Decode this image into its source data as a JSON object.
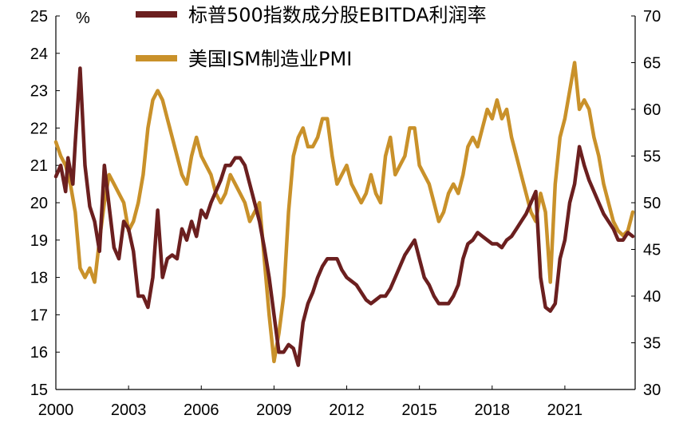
{
  "chart_data": {
    "type": "line",
    "y_unit_label": "%",
    "x_ticks": [
      "2000",
      "2003",
      "2006",
      "2009",
      "2012",
      "2015",
      "2018",
      "2021"
    ],
    "x_range": [
      2000,
      2023.9
    ],
    "left_axis": {
      "ticks": [
        "15",
        "16",
        "17",
        "18",
        "19",
        "20",
        "21",
        "22",
        "23",
        "24",
        "25"
      ],
      "range": [
        15,
        25
      ]
    },
    "right_axis": {
      "ticks": [
        "30",
        "35",
        "40",
        "45",
        "50",
        "55",
        "60",
        "65",
        "70"
      ],
      "range": [
        30,
        70
      ]
    },
    "legend_position": "top-center",
    "grid": false,
    "series": [
      {
        "name": "标普500指数成分股EBITDA利润率",
        "color": "#6b1f1f",
        "axis": "left",
        "points": [
          [
            2000.0,
            20.7
          ],
          [
            2000.2,
            21.0
          ],
          [
            2000.4,
            20.3
          ],
          [
            2000.5,
            21.2
          ],
          [
            2000.7,
            20.5
          ],
          [
            2000.8,
            21.6
          ],
          [
            2001.0,
            23.6
          ],
          [
            2001.2,
            21.0
          ],
          [
            2001.4,
            19.9
          ],
          [
            2001.6,
            19.5
          ],
          [
            2001.8,
            18.7
          ],
          [
            2002.0,
            21.0
          ],
          [
            2002.2,
            19.9
          ],
          [
            2002.4,
            18.8
          ],
          [
            2002.6,
            18.5
          ],
          [
            2002.8,
            19.5
          ],
          [
            2003.0,
            19.3
          ],
          [
            2003.2,
            18.7
          ],
          [
            2003.4,
            17.5
          ],
          [
            2003.6,
            17.5
          ],
          [
            2003.8,
            17.2
          ],
          [
            2004.0,
            18.0
          ],
          [
            2004.2,
            19.8
          ],
          [
            2004.4,
            18.0
          ],
          [
            2004.6,
            18.5
          ],
          [
            2004.8,
            18.6
          ],
          [
            2005.0,
            18.5
          ],
          [
            2005.2,
            19.3
          ],
          [
            2005.4,
            19.0
          ],
          [
            2005.6,
            19.5
          ],
          [
            2005.8,
            19.1
          ],
          [
            2006.0,
            19.8
          ],
          [
            2006.2,
            19.6
          ],
          [
            2006.4,
            20.0
          ],
          [
            2006.6,
            20.3
          ],
          [
            2006.8,
            20.6
          ],
          [
            2007.0,
            21.0
          ],
          [
            2007.2,
            21.0
          ],
          [
            2007.4,
            21.2
          ],
          [
            2007.6,
            21.2
          ],
          [
            2007.8,
            21.0
          ],
          [
            2008.0,
            20.5
          ],
          [
            2008.2,
            20.0
          ],
          [
            2008.4,
            19.5
          ],
          [
            2008.6,
            18.8
          ],
          [
            2008.8,
            18.0
          ],
          [
            2009.0,
            17.0
          ],
          [
            2009.2,
            16.0
          ],
          [
            2009.4,
            16.0
          ],
          [
            2009.6,
            16.2
          ],
          [
            2009.8,
            16.1
          ],
          [
            2010.0,
            15.65
          ],
          [
            2010.2,
            16.8
          ],
          [
            2010.4,
            17.3
          ],
          [
            2010.6,
            17.6
          ],
          [
            2010.8,
            18.0
          ],
          [
            2011.0,
            18.3
          ],
          [
            2011.2,
            18.5
          ],
          [
            2011.4,
            18.5
          ],
          [
            2011.6,
            18.5
          ],
          [
            2011.8,
            18.2
          ],
          [
            2012.0,
            18.0
          ],
          [
            2012.2,
            17.9
          ],
          [
            2012.4,
            17.8
          ],
          [
            2012.6,
            17.6
          ],
          [
            2012.8,
            17.4
          ],
          [
            2013.0,
            17.3
          ],
          [
            2013.2,
            17.4
          ],
          [
            2013.4,
            17.5
          ],
          [
            2013.6,
            17.5
          ],
          [
            2013.8,
            17.7
          ],
          [
            2014.0,
            18.0
          ],
          [
            2014.2,
            18.3
          ],
          [
            2014.4,
            18.6
          ],
          [
            2014.6,
            18.8
          ],
          [
            2014.8,
            19.0
          ],
          [
            2015.0,
            18.5
          ],
          [
            2015.2,
            18.0
          ],
          [
            2015.4,
            17.8
          ],
          [
            2015.6,
            17.5
          ],
          [
            2015.8,
            17.3
          ],
          [
            2016.0,
            17.3
          ],
          [
            2016.2,
            17.3
          ],
          [
            2016.4,
            17.5
          ],
          [
            2016.6,
            17.8
          ],
          [
            2016.8,
            18.5
          ],
          [
            2017.0,
            18.9
          ],
          [
            2017.2,
            19.0
          ],
          [
            2017.4,
            19.2
          ],
          [
            2017.6,
            19.1
          ],
          [
            2017.8,
            19.0
          ],
          [
            2018.0,
            18.9
          ],
          [
            2018.2,
            18.9
          ],
          [
            2018.4,
            18.8
          ],
          [
            2018.6,
            19.0
          ],
          [
            2018.8,
            19.1
          ],
          [
            2019.0,
            19.3
          ],
          [
            2019.2,
            19.5
          ],
          [
            2019.4,
            19.7
          ],
          [
            2019.6,
            20.0
          ],
          [
            2019.8,
            20.3
          ],
          [
            2020.0,
            18.0
          ],
          [
            2020.2,
            17.2
          ],
          [
            2020.4,
            17.1
          ],
          [
            2020.6,
            17.3
          ],
          [
            2020.8,
            18.5
          ],
          [
            2021.0,
            19.0
          ],
          [
            2021.2,
            20.0
          ],
          [
            2021.4,
            20.5
          ],
          [
            2021.6,
            21.5
          ],
          [
            2021.8,
            21.0
          ],
          [
            2022.0,
            20.6
          ],
          [
            2022.2,
            20.3
          ],
          [
            2022.4,
            20.0
          ],
          [
            2022.6,
            19.7
          ],
          [
            2022.8,
            19.5
          ],
          [
            2023.0,
            19.3
          ],
          [
            2023.2,
            19.0
          ],
          [
            2023.4,
            19.0
          ],
          [
            2023.6,
            19.2
          ],
          [
            2023.8,
            19.1
          ]
        ]
      },
      {
        "name": "美国ISM制造业PMI",
        "color": "#c9912a",
        "axis": "right",
        "points": [
          [
            2000.0,
            56.5
          ],
          [
            2000.2,
            55.0
          ],
          [
            2000.4,
            54.0
          ],
          [
            2000.6,
            52.0
          ],
          [
            2000.8,
            49.0
          ],
          [
            2001.0,
            43.0
          ],
          [
            2001.2,
            42.0
          ],
          [
            2001.4,
            43.0
          ],
          [
            2001.6,
            41.5
          ],
          [
            2001.8,
            46.0
          ],
          [
            2002.0,
            50.0
          ],
          [
            2002.2,
            53.0
          ],
          [
            2002.4,
            52.0
          ],
          [
            2002.6,
            51.0
          ],
          [
            2002.8,
            50.0
          ],
          [
            2003.0,
            47.0
          ],
          [
            2003.2,
            48.0
          ],
          [
            2003.4,
            50.0
          ],
          [
            2003.6,
            53.0
          ],
          [
            2003.8,
            58.0
          ],
          [
            2004.0,
            61.0
          ],
          [
            2004.2,
            62.0
          ],
          [
            2004.4,
            61.0
          ],
          [
            2004.6,
            59.0
          ],
          [
            2004.8,
            57.0
          ],
          [
            2005.0,
            55.0
          ],
          [
            2005.2,
            53.0
          ],
          [
            2005.4,
            52.0
          ],
          [
            2005.6,
            55.0
          ],
          [
            2005.8,
            57.0
          ],
          [
            2006.0,
            55.0
          ],
          [
            2006.2,
            54.0
          ],
          [
            2006.4,
            53.0
          ],
          [
            2006.6,
            51.0
          ],
          [
            2006.8,
            50.0
          ],
          [
            2007.0,
            51.0
          ],
          [
            2007.2,
            53.0
          ],
          [
            2007.4,
            52.0
          ],
          [
            2007.6,
            51.0
          ],
          [
            2007.8,
            50.0
          ],
          [
            2008.0,
            48.0
          ],
          [
            2008.2,
            49.0
          ],
          [
            2008.4,
            50.0
          ],
          [
            2008.6,
            44.0
          ],
          [
            2008.8,
            38.0
          ],
          [
            2009.0,
            33.0
          ],
          [
            2009.2,
            36.0
          ],
          [
            2009.4,
            40.0
          ],
          [
            2009.6,
            49.0
          ],
          [
            2009.8,
            55.0
          ],
          [
            2010.0,
            57.0
          ],
          [
            2010.2,
            58.0
          ],
          [
            2010.4,
            56.0
          ],
          [
            2010.6,
            56.0
          ],
          [
            2010.8,
            57.0
          ],
          [
            2011.0,
            59.0
          ],
          [
            2011.2,
            59.0
          ],
          [
            2011.4,
            55.0
          ],
          [
            2011.6,
            52.0
          ],
          [
            2011.8,
            53.0
          ],
          [
            2012.0,
            54.0
          ],
          [
            2012.2,
            52.0
          ],
          [
            2012.4,
            51.0
          ],
          [
            2012.6,
            50.0
          ],
          [
            2012.8,
            51.0
          ],
          [
            2013.0,
            53.0
          ],
          [
            2013.2,
            51.0
          ],
          [
            2013.4,
            50.0
          ],
          [
            2013.6,
            55.0
          ],
          [
            2013.8,
            57.0
          ],
          [
            2014.0,
            53.0
          ],
          [
            2014.2,
            54.0
          ],
          [
            2014.4,
            55.0
          ],
          [
            2014.6,
            58.0
          ],
          [
            2014.8,
            58.0
          ],
          [
            2015.0,
            54.0
          ],
          [
            2015.2,
            53.0
          ],
          [
            2015.4,
            52.0
          ],
          [
            2015.6,
            50.0
          ],
          [
            2015.8,
            48.0
          ],
          [
            2016.0,
            49.0
          ],
          [
            2016.2,
            51.0
          ],
          [
            2016.4,
            52.0
          ],
          [
            2016.6,
            51.0
          ],
          [
            2016.8,
            53.0
          ],
          [
            2017.0,
            56.0
          ],
          [
            2017.2,
            57.0
          ],
          [
            2017.4,
            56.0
          ],
          [
            2017.6,
            58.0
          ],
          [
            2017.8,
            60.0
          ],
          [
            2018.0,
            59.0
          ],
          [
            2018.2,
            61.0
          ],
          [
            2018.4,
            59.0
          ],
          [
            2018.6,
            60.0
          ],
          [
            2018.8,
            57.0
          ],
          [
            2019.0,
            55.0
          ],
          [
            2019.2,
            53.0
          ],
          [
            2019.4,
            51.0
          ],
          [
            2019.6,
            49.0
          ],
          [
            2019.8,
            48.0
          ],
          [
            2020.0,
            51.0
          ],
          [
            2020.2,
            49.0
          ],
          [
            2020.4,
            41.5
          ],
          [
            2020.6,
            52.0
          ],
          [
            2020.8,
            57.0
          ],
          [
            2021.0,
            59.0
          ],
          [
            2021.2,
            62.0
          ],
          [
            2021.4,
            65.0
          ],
          [
            2021.6,
            60.0
          ],
          [
            2021.8,
            61.0
          ],
          [
            2022.0,
            60.0
          ],
          [
            2022.2,
            57.0
          ],
          [
            2022.4,
            55.0
          ],
          [
            2022.6,
            52.0
          ],
          [
            2022.8,
            50.0
          ],
          [
            2023.0,
            48.0
          ],
          [
            2023.2,
            47.0
          ],
          [
            2023.4,
            46.5
          ],
          [
            2023.6,
            47.0
          ],
          [
            2023.8,
            49.0
          ]
        ]
      }
    ]
  }
}
